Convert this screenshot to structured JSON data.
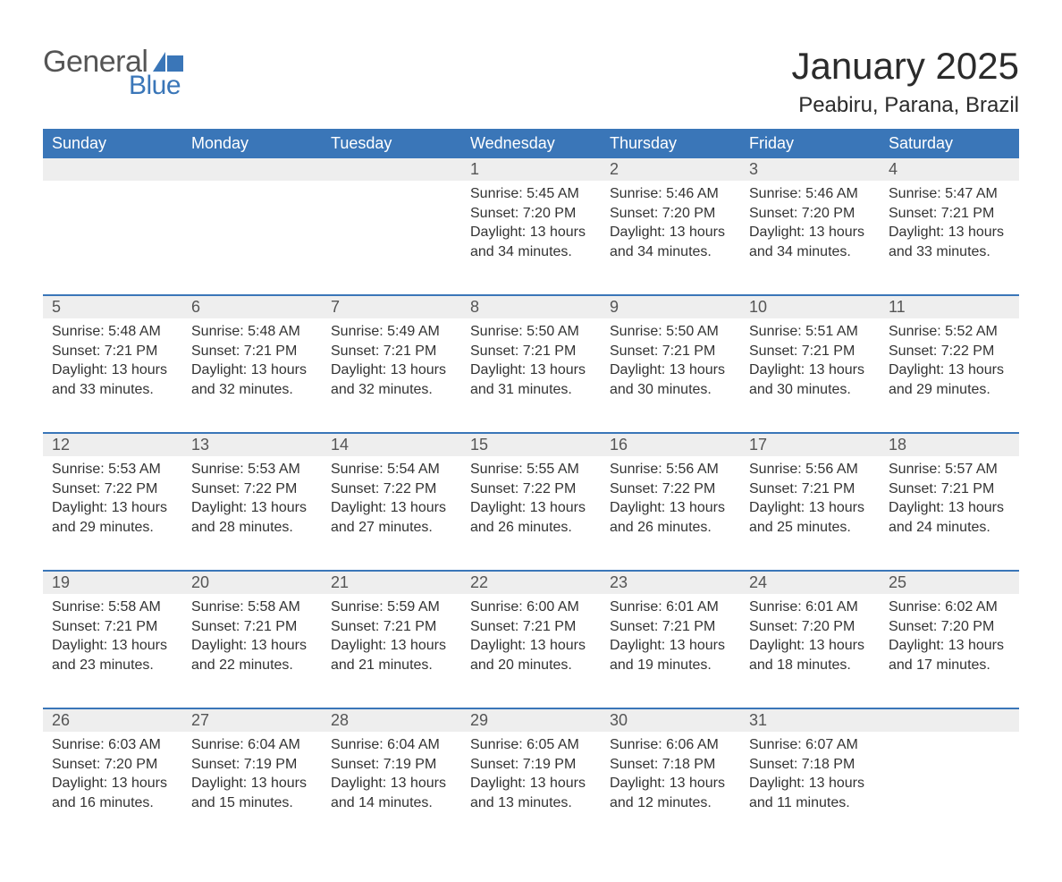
{
  "logo": {
    "text1": "General",
    "text2": "Blue",
    "flag_color": "#3a76b8",
    "text1_color": "#555555",
    "text2_color": "#3a76b8"
  },
  "title": "January 2025",
  "location": "Peabiru, Parana, Brazil",
  "colors": {
    "header_bg": "#3a76b8",
    "header_text": "#ffffff",
    "daynum_bg": "#eeeeee",
    "daynum_text": "#555555",
    "body_text": "#333333",
    "rule": "#3a76b8",
    "page_bg": "#ffffff"
  },
  "typography": {
    "title_fontsize": 42,
    "location_fontsize": 24,
    "weekday_fontsize": 18,
    "daynum_fontsize": 18,
    "body_fontsize": 16
  },
  "weekdays": [
    "Sunday",
    "Monday",
    "Tuesday",
    "Wednesday",
    "Thursday",
    "Friday",
    "Saturday"
  ],
  "labels": {
    "sunrise": "Sunrise: ",
    "sunset": "Sunset: ",
    "daylight": "Daylight: "
  },
  "weeks": [
    [
      null,
      null,
      null,
      {
        "n": "1",
        "sunrise": "5:45 AM",
        "sunset": "7:20 PM",
        "daylight": "13 hours and 34 minutes."
      },
      {
        "n": "2",
        "sunrise": "5:46 AM",
        "sunset": "7:20 PM",
        "daylight": "13 hours and 34 minutes."
      },
      {
        "n": "3",
        "sunrise": "5:46 AM",
        "sunset": "7:20 PM",
        "daylight": "13 hours and 34 minutes."
      },
      {
        "n": "4",
        "sunrise": "5:47 AM",
        "sunset": "7:21 PM",
        "daylight": "13 hours and 33 minutes."
      }
    ],
    [
      {
        "n": "5",
        "sunrise": "5:48 AM",
        "sunset": "7:21 PM",
        "daylight": "13 hours and 33 minutes."
      },
      {
        "n": "6",
        "sunrise": "5:48 AM",
        "sunset": "7:21 PM",
        "daylight": "13 hours and 32 minutes."
      },
      {
        "n": "7",
        "sunrise": "5:49 AM",
        "sunset": "7:21 PM",
        "daylight": "13 hours and 32 minutes."
      },
      {
        "n": "8",
        "sunrise": "5:50 AM",
        "sunset": "7:21 PM",
        "daylight": "13 hours and 31 minutes."
      },
      {
        "n": "9",
        "sunrise": "5:50 AM",
        "sunset": "7:21 PM",
        "daylight": "13 hours and 30 minutes."
      },
      {
        "n": "10",
        "sunrise": "5:51 AM",
        "sunset": "7:21 PM",
        "daylight": "13 hours and 30 minutes."
      },
      {
        "n": "11",
        "sunrise": "5:52 AM",
        "sunset": "7:22 PM",
        "daylight": "13 hours and 29 minutes."
      }
    ],
    [
      {
        "n": "12",
        "sunrise": "5:53 AM",
        "sunset": "7:22 PM",
        "daylight": "13 hours and 29 minutes."
      },
      {
        "n": "13",
        "sunrise": "5:53 AM",
        "sunset": "7:22 PM",
        "daylight": "13 hours and 28 minutes."
      },
      {
        "n": "14",
        "sunrise": "5:54 AM",
        "sunset": "7:22 PM",
        "daylight": "13 hours and 27 minutes."
      },
      {
        "n": "15",
        "sunrise": "5:55 AM",
        "sunset": "7:22 PM",
        "daylight": "13 hours and 26 minutes."
      },
      {
        "n": "16",
        "sunrise": "5:56 AM",
        "sunset": "7:22 PM",
        "daylight": "13 hours and 26 minutes."
      },
      {
        "n": "17",
        "sunrise": "5:56 AM",
        "sunset": "7:21 PM",
        "daylight": "13 hours and 25 minutes."
      },
      {
        "n": "18",
        "sunrise": "5:57 AM",
        "sunset": "7:21 PM",
        "daylight": "13 hours and 24 minutes."
      }
    ],
    [
      {
        "n": "19",
        "sunrise": "5:58 AM",
        "sunset": "7:21 PM",
        "daylight": "13 hours and 23 minutes."
      },
      {
        "n": "20",
        "sunrise": "5:58 AM",
        "sunset": "7:21 PM",
        "daylight": "13 hours and 22 minutes."
      },
      {
        "n": "21",
        "sunrise": "5:59 AM",
        "sunset": "7:21 PM",
        "daylight": "13 hours and 21 minutes."
      },
      {
        "n": "22",
        "sunrise": "6:00 AM",
        "sunset": "7:21 PM",
        "daylight": "13 hours and 20 minutes."
      },
      {
        "n": "23",
        "sunrise": "6:01 AM",
        "sunset": "7:21 PM",
        "daylight": "13 hours and 19 minutes."
      },
      {
        "n": "24",
        "sunrise": "6:01 AM",
        "sunset": "7:20 PM",
        "daylight": "13 hours and 18 minutes."
      },
      {
        "n": "25",
        "sunrise": "6:02 AM",
        "sunset": "7:20 PM",
        "daylight": "13 hours and 17 minutes."
      }
    ],
    [
      {
        "n": "26",
        "sunrise": "6:03 AM",
        "sunset": "7:20 PM",
        "daylight": "13 hours and 16 minutes."
      },
      {
        "n": "27",
        "sunrise": "6:04 AM",
        "sunset": "7:19 PM",
        "daylight": "13 hours and 15 minutes."
      },
      {
        "n": "28",
        "sunrise": "6:04 AM",
        "sunset": "7:19 PM",
        "daylight": "13 hours and 14 minutes."
      },
      {
        "n": "29",
        "sunrise": "6:05 AM",
        "sunset": "7:19 PM",
        "daylight": "13 hours and 13 minutes."
      },
      {
        "n": "30",
        "sunrise": "6:06 AM",
        "sunset": "7:18 PM",
        "daylight": "13 hours and 12 minutes."
      },
      {
        "n": "31",
        "sunrise": "6:07 AM",
        "sunset": "7:18 PM",
        "daylight": "13 hours and 11 minutes."
      },
      null
    ]
  ]
}
